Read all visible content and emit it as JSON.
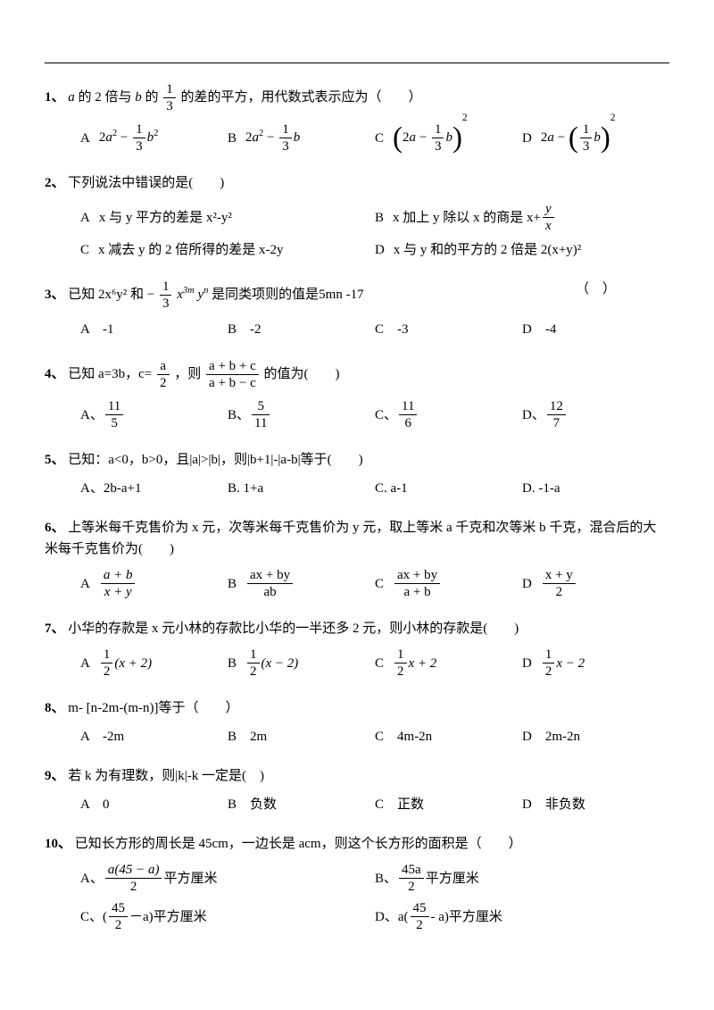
{
  "q1": {
    "num": "1、",
    "text_a": " 的 2 倍与 ",
    "text_b": " 的",
    "text_c": "的差的平方，用代数式表示应为（　　）",
    "A": "A",
    "B": "B",
    "C": "C",
    "D": "D"
  },
  "q2": {
    "num": "2、",
    "text": "下列说法中错误的是(　　)",
    "A_label": "A",
    "A_text": "x 与 y 平方的差是 x²-y²",
    "B_label": "B",
    "B_text_a": "x 加上 y 除以 x 的商是 x+",
    "C_label": "C",
    "C_text": "x 减去 y 的 2 倍所得的差是 x-2y",
    "D_label": "D",
    "D_text": "x 与 y 和的平方的 2 倍是 2(x+y)²"
  },
  "q3": {
    "num": "3、",
    "text_a": "已知 2x⁶y² 和 ",
    "text_b": " 是同类项则的值是5mn -17",
    "blank": "（　）",
    "A": "A　-1",
    "B": "B　-2",
    "C": "C　-3",
    "D": "D　-4"
  },
  "q4": {
    "num": "4、",
    "text_a": "已知 a=3b，c=",
    "text_b": "，则",
    "text_c": "的值为(　　)",
    "A": "A、",
    "B": "B、",
    "C": "C、",
    "D": "D、"
  },
  "q5": {
    "num": "5、",
    "text": "已知：a<0，b>0，且|a|>|b|，则|b+1|-|a-b|等于(　　)",
    "A": "A、2b-a+1",
    "B": "B. 1+a",
    "C": "C. a-1",
    "D": "D. -1-a"
  },
  "q6": {
    "num": "6、",
    "text": "上等米每千克售价为 x 元，次等米每千克售价为 y 元，取上等米 a 千克和次等米 b 千克，混合后的大米每千克售价为(　　)",
    "A": "A",
    "B": "B",
    "C": "C",
    "D": "D"
  },
  "q7": {
    "num": "7、",
    "text": "小华的存款是 x 元小林的存款比小华的一半还多 2 元，则小林的存款是(　　)",
    "A": "A",
    "B": "B",
    "C": "C",
    "D": "D"
  },
  "q8": {
    "num": "8、",
    "text": "m- [n-2m-(m-n)]等于（　　）",
    "A": "A　-2m",
    "B": "B　2m",
    "C": "C　4m-2n",
    "D": "D　2m-2n"
  },
  "q9": {
    "num": "9、",
    "text": "若 k 为有理数，则|k|-k 一定是(　)",
    "A": "A　0",
    "B": "B　负数",
    "C": "C　正数",
    "D": "D　非负数"
  },
  "q10": {
    "num": "10、",
    "text": "已知长方形的周长是 45cm，一边长是 acm，则这个长方形的面积是（　　）",
    "A_label": "A、",
    "A_suffix": "平方厘米",
    "B_label": "B、",
    "B_suffix": "平方厘米",
    "C_label": "C、",
    "C_prefix": "(",
    "C_suffix": "－a)平方厘米",
    "D_label": "D、",
    "D_prefix": "a(",
    "D_suffix": "- a)平方厘米"
  },
  "frac": {
    "one_third_num": "1",
    "one_third_den": "3",
    "y": "y",
    "x": "x",
    "a": "a",
    "two": "2",
    "abc_num": "a + b + c",
    "abc_den": "a + b − c",
    "f11_5_n": "11",
    "f11_5_d": "5",
    "f5_11_n": "5",
    "f5_11_d": "11",
    "f11_6_n": "11",
    "f11_6_d": "6",
    "f12_7_n": "12",
    "f12_7_d": "7",
    "ab_n": "a + b",
    "xy_d": "x + y",
    "axby_n": "ax + by",
    "ab_d": "ab",
    "apb_d": "a + b",
    "xpy_n": "x + y",
    "two_d": "2",
    "half_n": "1",
    "half_d": "2",
    "a45a_n": "a(45 − a)",
    "a45a_d": "2",
    "f45a_n": "45a",
    "f45a_d": "2",
    "f45_n": "45",
    "f45_d": "2"
  },
  "expr": {
    "a_it": "a",
    "b_it": "b",
    "two_a_sq": "2a",
    "sq": "2",
    "minus": " − ",
    "x3m": "x",
    "m3": "3m",
    "yn": "y",
    "n": "n",
    "xp2": "(x + 2)",
    "xm2": "(x − 2)",
    "xplus2": "x + 2",
    "xminus2": "x − 2"
  }
}
